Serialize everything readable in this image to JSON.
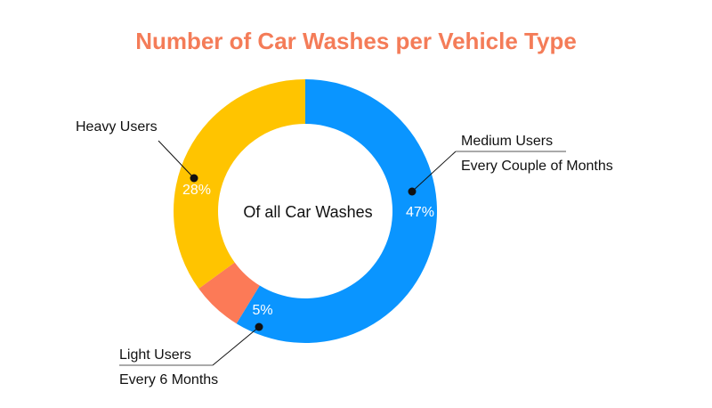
{
  "chart_data": {
    "type": "pie",
    "variant": "donut",
    "title": "Number of Car Washes per Vehicle Type",
    "center_label": "Of all Car Washes",
    "slices": [
      {
        "name": "Medium Users",
        "subtitle": "Every Couple of Months",
        "value": 47,
        "label": "47%",
        "color": "#0A95FF"
      },
      {
        "name": "Light Users",
        "subtitle": "Every 6 Months",
        "value": 5,
        "label": "5%",
        "color": "#FC7A57"
      },
      {
        "name": "Heavy Users",
        "subtitle": "",
        "value": 28,
        "label": "28%",
        "color": "#FFC400"
      }
    ],
    "colors": {
      "title": "#F47C58",
      "text": "#111111",
      "slice_text": "#FFFFFF",
      "leader": "#111111"
    }
  }
}
